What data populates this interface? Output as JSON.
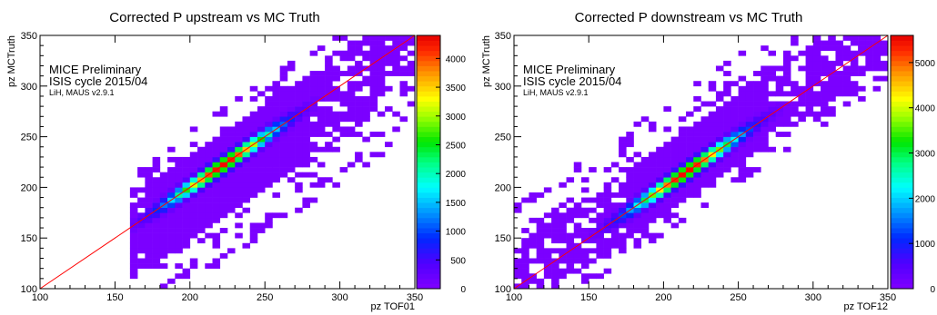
{
  "chart_data": [
    {
      "type": "heatmap",
      "title": "Corrected P upstream vs MC Truth",
      "xlabel": "pz TOF01",
      "ylabel": "pz MCTruth",
      "xlim": [
        100,
        350
      ],
      "ylim": [
        100,
        350
      ],
      "xticks": [
        "100",
        "150",
        "200",
        "250",
        "300",
        "350"
      ],
      "yticks": [
        "100",
        "150",
        "200",
        "250",
        "300",
        "350"
      ],
      "colorbar_ticks": [
        "0",
        "500",
        "1000",
        "1500",
        "2000",
        "2500",
        "3000",
        "3500",
        "4000"
      ],
      "zmax": 4400,
      "annotations": [
        "MICE Preliminary",
        "ISIS cycle 2015/04",
        "LiH, MAUS v2.9.1"
      ],
      "reference_line": "y = x",
      "grid": false,
      "distribution": {
        "x_min": 162,
        "ridge_slope": 1.0,
        "ridge_offset": 0,
        "core_x_range": [
          170,
          280
        ],
        "peak_at": [
          222,
          222
        ],
        "peak_count": 4300,
        "band_half_width": 38,
        "band_skew": "below the diagonal"
      }
    },
    {
      "type": "heatmap",
      "title": "Corrected P downstream vs MC Truth",
      "xlabel": "pz TOF12",
      "ylabel": "pz MCTruth",
      "xlim": [
        100,
        350
      ],
      "ylim": [
        100,
        350
      ],
      "xticks": [
        "100",
        "150",
        "200",
        "250",
        "300",
        "350"
      ],
      "yticks": [
        "100",
        "150",
        "200",
        "250",
        "300",
        "350"
      ],
      "colorbar_ticks": [
        "0",
        "1000",
        "2000",
        "3000",
        "4000",
        "5000"
      ],
      "zmax": 5600,
      "annotations": [
        "MICE Preliminary",
        "ISIS cycle 2015/04",
        "LiH, MAUS v2.9.1"
      ],
      "reference_line": "y = x",
      "grid": false,
      "distribution": {
        "x_min": 100,
        "ridge_slope": 1.0,
        "ridge_offset": 0,
        "core_x_range": [
          175,
          270
        ],
        "peak_at": [
          215,
          215
        ],
        "peak_count": 5500,
        "band_half_width": 32,
        "band_skew": "above the diagonal"
      }
    }
  ]
}
